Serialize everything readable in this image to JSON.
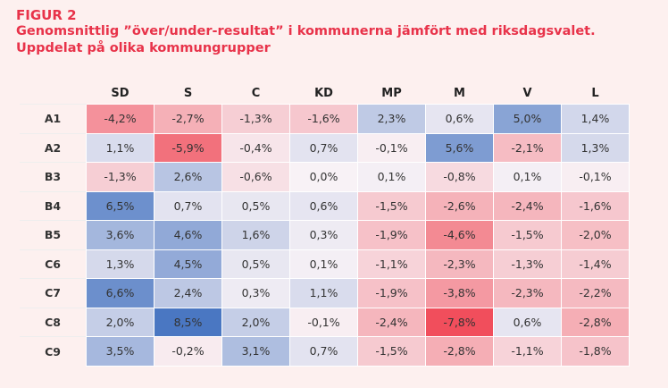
{
  "header": {
    "figure_label": "FIGUR 2",
    "subtitle_line1": "Genomsnittlig ”över/under-resultat” i kommunerna jämfört med riksdagsvalet.",
    "subtitle_line2": "Uppdelat på olika kommungrupper"
  },
  "colors": {
    "accent": "#e8334a",
    "positive": "#4a77c2",
    "negative": "#f04250",
    "background": "#fdf0ef"
  },
  "chart_data": {
    "type": "heatmap",
    "columns": [
      "SD",
      "S",
      "C",
      "KD",
      "MP",
      "M",
      "V",
      "L"
    ],
    "rows": [
      "A1",
      "A2",
      "B3",
      "B4",
      "B5",
      "C6",
      "C7",
      "C8",
      "C9"
    ],
    "values": [
      [
        -4.2,
        -2.7,
        -1.3,
        -1.6,
        2.3,
        0.6,
        5.0,
        1.4
      ],
      [
        1.1,
        -5.9,
        -0.4,
        0.7,
        -0.1,
        5.6,
        -2.1,
        1.3
      ],
      [
        -1.3,
        2.6,
        -0.6,
        0.0,
        0.1,
        -0.8,
        0.1,
        -0.1
      ],
      [
        6.5,
        0.7,
        0.5,
        0.6,
        -1.5,
        -2.6,
        -2.4,
        -1.6
      ],
      [
        3.6,
        4.6,
        1.6,
        0.3,
        -1.9,
        -4.6,
        -1.5,
        -2.0
      ],
      [
        1.3,
        4.5,
        0.5,
        0.1,
        -1.1,
        -2.3,
        -1.3,
        -1.4
      ],
      [
        6.6,
        2.4,
        0.3,
        1.1,
        -1.9,
        -3.8,
        -2.3,
        -2.2
      ],
      [
        2.0,
        8.5,
        2.0,
        -0.1,
        -2.4,
        -7.8,
        0.6,
        -2.8
      ],
      [
        3.5,
        -0.2,
        3.1,
        0.7,
        -1.5,
        -2.8,
        -1.1,
        -1.8
      ]
    ],
    "value_labels": [
      [
        "-4,2%",
        "-2,7%",
        "-1,3%",
        "-1,6%",
        "2,3%",
        "0,6%",
        "5,0%",
        "1,4%"
      ],
      [
        "1,1%",
        "-5,9%",
        "-0,4%",
        "0,7%",
        "-0,1%",
        "5,6%",
        "-2,1%",
        "1,3%"
      ],
      [
        "-1,3%",
        "2,6%",
        "-0,6%",
        "0,0%",
        "0,1%",
        "-0,8%",
        "0,1%",
        "-0,1%"
      ],
      [
        "6,5%",
        "0,7%",
        "0,5%",
        "0,6%",
        "-1,5%",
        "-2,6%",
        "-2,4%",
        "-1,6%"
      ],
      [
        "3,6%",
        "4,6%",
        "1,6%",
        "0,3%",
        "-1,9%",
        "-4,6%",
        "-1,5%",
        "-2,0%"
      ],
      [
        "1,3%",
        "4,5%",
        "0,5%",
        "0,1%",
        "-1,1%",
        "-2,3%",
        "-1,3%",
        "-1,4%"
      ],
      [
        "6,6%",
        "2,4%",
        "0,3%",
        "1,1%",
        "-1,9%",
        "-3,8%",
        "-2,3%",
        "-2,2%"
      ],
      [
        "2,0%",
        "8,5%",
        "2,0%",
        "-0,1%",
        "-2,4%",
        "-7,8%",
        "0,6%",
        "-2,8%"
      ],
      [
        "3,5%",
        "-0,2%",
        "3,1%",
        "0,7%",
        "-1,5%",
        "-2,8%",
        "-1,1%",
        "-1,8%"
      ]
    ]
  }
}
